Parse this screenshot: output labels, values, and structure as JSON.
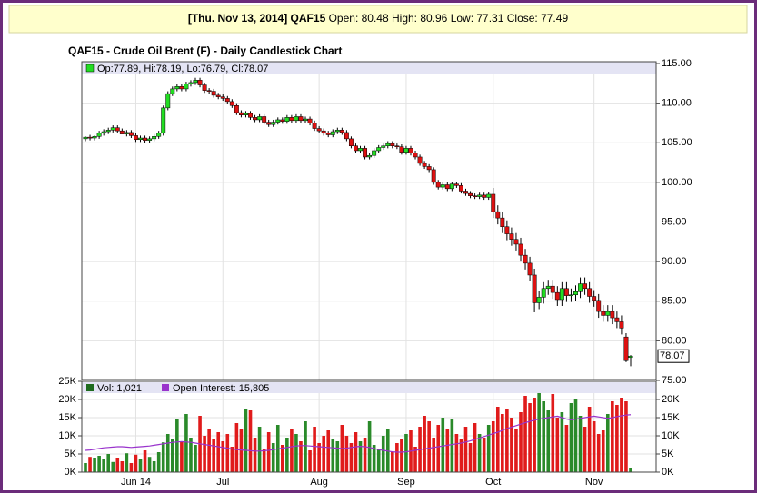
{
  "header": {
    "date_symbol": "[Thu. Nov 13, 2014] QAF15",
    "quote": "Open: 80.48 High: 80.96 Low: 77.31 Close: 77.49"
  },
  "chart_data": [
    {
      "type": "candlestick",
      "title": "QAF15 - Crude Oil Brent (F) - Daily Candlestick Chart",
      "legend": "Op:77.89, Hi:78.19, Lo:76.79, Cl:78.07",
      "last_label": "78.07",
      "last_value": 78.07,
      "up_color": "#22dd22",
      "down_color": "#dd1111",
      "ylim": [
        75,
        115
      ],
      "yticks": [
        {
          "value": 75,
          "label": "75.00"
        },
        {
          "value": 80,
          "label": "80.00"
        },
        {
          "value": 85,
          "label": "85.00"
        },
        {
          "value": 90,
          "label": "90.00"
        },
        {
          "value": 95,
          "label": "95.00"
        },
        {
          "value": 100,
          "label": "100.00"
        },
        {
          "value": 105,
          "label": "105.00"
        },
        {
          "value": 110,
          "label": "110.00"
        },
        {
          "value": 115,
          "label": "115.00"
        }
      ],
      "grid": true,
      "open": [
        105.5,
        105.7,
        105.6,
        105.8,
        106.2,
        106.4,
        106.6,
        106.9,
        106.5,
        106.1,
        106.3,
        105.9,
        105.4,
        105.6,
        105.3,
        105.5,
        105.8,
        106.2,
        109.4,
        111.2,
        111.8,
        112.1,
        111.8,
        112.4,
        112.6,
        112.9,
        112.3,
        111.6,
        111.5,
        111.0,
        110.8,
        110.6,
        110.2,
        109.7,
        108.8,
        108.5,
        108.7,
        108.2,
        107.9,
        108.3,
        107.6,
        107.3,
        107.6,
        107.9,
        107.7,
        108.2,
        107.8,
        108.3,
        107.8,
        108.0,
        107.5,
        106.8,
        106.5,
        106.2,
        106.0,
        106.4,
        106.6,
        106.3,
        105.5,
        104.6,
        104.0,
        104.3,
        103.2,
        103.4,
        104.0,
        104.4,
        104.6,
        104.9,
        104.6,
        104.5,
        103.8,
        104.3,
        103.7,
        103.2,
        102.4,
        102.0,
        101.6,
        100.0,
        99.4,
        99.7,
        99.2,
        99.8,
        99.6,
        98.9,
        98.6,
        98.3,
        98.2,
        98.4,
        98.1,
        98.5,
        96.3,
        95.5,
        94.4,
        93.5,
        92.8,
        92.2,
        90.8,
        89.8,
        88.3,
        84.8,
        85.5,
        86.6,
        86.9,
        86.1,
        85.2,
        86.6,
        85.7,
        85.8,
        86.2,
        87.2,
        86.6,
        85.6,
        85.1,
        83.7,
        83.2,
        83.7,
        82.9,
        82.4,
        80.48,
        77.89
      ],
      "high": [
        105.8,
        106.0,
        105.9,
        106.5,
        106.7,
        106.9,
        107.2,
        107.2,
        106.8,
        106.6,
        106.6,
        106.2,
        105.9,
        105.9,
        105.8,
        106.1,
        106.5,
        109.7,
        111.5,
        112.1,
        112.4,
        112.4,
        112.7,
        112.9,
        113.2,
        113.2,
        112.6,
        111.9,
        111.8,
        111.3,
        111.1,
        110.9,
        110.5,
        110.0,
        109.1,
        109.0,
        109.0,
        108.5,
        108.6,
        108.6,
        107.9,
        107.9,
        108.2,
        108.2,
        108.5,
        108.5,
        108.6,
        108.6,
        108.3,
        108.3,
        107.8,
        107.1,
        106.8,
        106.5,
        106.7,
        106.9,
        106.9,
        106.6,
        105.8,
        104.9,
        104.6,
        104.6,
        103.7,
        104.3,
        104.7,
        104.9,
        105.2,
        105.2,
        104.9,
        104.8,
        104.6,
        104.6,
        104.0,
        103.5,
        102.7,
        102.3,
        101.9,
        100.3,
        100.0,
        100.0,
        100.1,
        100.1,
        99.9,
        99.2,
        98.9,
        98.6,
        98.7,
        98.7,
        98.8,
        99.3,
        97.1,
        96.3,
        95.2,
        94.3,
        93.6,
        93.0,
        91.6,
        90.6,
        89.1,
        86.3,
        87.4,
        87.7,
        87.7,
        86.9,
        87.4,
        87.4,
        86.6,
        87.0,
        88.0,
        88.0,
        87.4,
        86.4,
        85.9,
        84.5,
        84.5,
        84.5,
        83.7,
        83.2,
        80.96,
        78.19
      ],
      "low": [
        105.2,
        105.3,
        105.3,
        105.5,
        105.9,
        106.1,
        106.3,
        106.2,
        106.2,
        105.8,
        105.6,
        105.1,
        105.1,
        105.0,
        105.0,
        105.2,
        105.5,
        105.9,
        109.1,
        110.9,
        111.5,
        111.5,
        111.5,
        112.1,
        112.3,
        112.0,
        111.3,
        111.2,
        110.7,
        110.5,
        110.3,
        109.9,
        109.4,
        108.5,
        108.2,
        108.2,
        107.9,
        107.6,
        107.6,
        107.3,
        107.0,
        107.0,
        107.3,
        107.4,
        107.4,
        107.5,
        107.5,
        107.5,
        107.5,
        107.2,
        106.5,
        106.2,
        105.9,
        105.7,
        105.7,
        106.1,
        106.0,
        105.2,
        104.3,
        103.7,
        103.7,
        102.9,
        102.9,
        103.1,
        103.7,
        104.1,
        104.3,
        104.3,
        104.2,
        103.5,
        103.5,
        103.4,
        102.9,
        102.1,
        101.7,
        101.3,
        99.7,
        99.1,
        99.1,
        98.9,
        98.9,
        99.3,
        98.6,
        98.3,
        98.0,
        97.9,
        97.9,
        97.8,
        97.8,
        95.5,
        94.7,
        93.6,
        92.7,
        92.0,
        91.4,
        90.0,
        89.0,
        87.5,
        83.6,
        84.0,
        84.7,
        85.8,
        85.3,
        84.4,
        84.4,
        84.9,
        84.9,
        85.0,
        85.4,
        85.8,
        84.8,
        84.3,
        82.9,
        82.4,
        82.4,
        82.1,
        81.6,
        80.8,
        77.31,
        76.79
      ],
      "close": [
        105.7,
        105.6,
        105.8,
        106.2,
        106.4,
        106.6,
        106.9,
        106.5,
        106.1,
        106.3,
        105.9,
        105.4,
        105.6,
        105.3,
        105.5,
        105.8,
        106.2,
        109.4,
        111.2,
        111.8,
        112.1,
        111.8,
        112.4,
        112.6,
        112.9,
        112.3,
        111.6,
        111.5,
        111.0,
        110.8,
        110.6,
        110.2,
        109.7,
        108.8,
        108.5,
        108.7,
        108.2,
        107.9,
        108.3,
        107.6,
        107.3,
        107.6,
        107.9,
        107.7,
        108.2,
        107.8,
        108.3,
        107.8,
        108.0,
        107.5,
        106.8,
        106.5,
        106.2,
        106.0,
        106.4,
        106.6,
        106.3,
        105.5,
        104.6,
        104.0,
        104.3,
        103.2,
        103.4,
        104.0,
        104.4,
        104.6,
        104.9,
        104.6,
        104.5,
        103.8,
        104.3,
        103.7,
        103.2,
        102.4,
        102.0,
        101.6,
        100.0,
        99.4,
        99.7,
        99.2,
        99.8,
        99.6,
        98.9,
        98.6,
        98.3,
        98.2,
        98.4,
        98.1,
        98.5,
        96.3,
        95.5,
        94.4,
        93.5,
        92.8,
        92.2,
        90.8,
        89.8,
        88.3,
        84.8,
        85.5,
        86.6,
        86.9,
        86.1,
        85.2,
        86.6,
        85.7,
        85.8,
        86.2,
        87.2,
        86.6,
        85.6,
        85.1,
        83.7,
        83.2,
        83.7,
        82.9,
        82.4,
        81.6,
        77.49,
        78.07
      ]
    },
    {
      "type": "bar",
      "categories": [
        null,
        null,
        null,
        null,
        null,
        null,
        null,
        null,
        null,
        null,
        null,
        "Jun 14",
        null,
        null,
        null,
        null,
        null,
        null,
        null,
        null,
        null,
        null,
        null,
        null,
        null,
        null,
        null,
        null,
        null,
        null,
        "Jul",
        null,
        null,
        null,
        null,
        null,
        null,
        null,
        null,
        null,
        null,
        null,
        null,
        null,
        null,
        null,
        null,
        null,
        null,
        null,
        null,
        "Aug",
        null,
        null,
        null,
        null,
        null,
        null,
        null,
        null,
        null,
        null,
        null,
        null,
        null,
        null,
        null,
        null,
        null,
        null,
        "Sep",
        null,
        null,
        null,
        null,
        null,
        null,
        null,
        null,
        null,
        null,
        null,
        null,
        null,
        null,
        null,
        null,
        null,
        null,
        "Oct",
        null,
        null,
        null,
        null,
        null,
        null,
        null,
        null,
        null,
        null,
        null,
        null,
        null,
        null,
        null,
        null,
        null,
        null,
        null,
        null,
        null,
        "Nov",
        null,
        null,
        null,
        null,
        null,
        null,
        null,
        null
      ],
      "ylim": [
        0,
        25000
      ],
      "yticks": [
        {
          "value": 0,
          "label": "0K"
        },
        {
          "value": 5000,
          "label": "5K"
        },
        {
          "value": 10000,
          "label": "10K"
        },
        {
          "value": 15000,
          "label": "15K"
        },
        {
          "value": 20000,
          "label": "20K"
        },
        {
          "value": 25000,
          "label": "25K"
        }
      ],
      "y2ticks": [
        {
          "value": 0,
          "label": "0K"
        },
        {
          "value": 5000,
          "label": "5K"
        },
        {
          "value": 10000,
          "label": "10K"
        },
        {
          "value": 15000,
          "label": "15K"
        },
        {
          "value": 20000,
          "label": "20K"
        }
      ],
      "grid": true,
      "series": [
        {
          "name": "Vol: 1,021",
          "color": "#1f6b1f",
          "up_color": "#2a8a2a",
          "down_color": "#e01b1b",
          "values": [
            2500,
            4200,
            3800,
            4500,
            3500,
            5000,
            2800,
            4000,
            3000,
            5200,
            2500,
            4800,
            3500,
            6000,
            4200,
            3000,
            5500,
            8200,
            10500,
            9000,
            14500,
            8500,
            16000,
            9500,
            7500,
            15500,
            10000,
            12000,
            9000,
            11000,
            8500,
            10500,
            7000,
            13500,
            12000,
            17500,
            17000,
            9500,
            12500,
            6500,
            11000,
            8000,
            13000,
            7500,
            9500,
            12000,
            10500,
            8500,
            14000,
            6000,
            12500,
            8000,
            10000,
            11500,
            9000,
            8500,
            13000,
            10000,
            8000,
            11000,
            8500,
            9500,
            14000,
            7500,
            6500,
            10000,
            12000,
            5500,
            8000,
            9000,
            10500,
            11500,
            7000,
            12500,
            15500,
            14000,
            9500,
            13000,
            15000,
            12000,
            14500,
            10500,
            9000,
            12500,
            8000,
            13500,
            10500,
            9500,
            13000,
            14000,
            18000,
            16000,
            17500,
            15000,
            12000,
            16500,
            21000,
            19000,
            20500,
            22500,
            19500,
            17000,
            21500,
            15000,
            16500,
            13000,
            19000,
            20000,
            15500,
            12500,
            18000,
            14000,
            10500,
            11500,
            16000,
            19500,
            18500,
            20500,
            19500,
            1021
          ]
        },
        {
          "name": "Open Interest: 15,805",
          "type": "line",
          "color": "#9933cc",
          "values": [
            6000,
            6100,
            6300,
            6500,
            6700,
            6800,
            6900,
            7000,
            7000,
            6900,
            6800,
            6900,
            7000,
            7100,
            7200,
            7400,
            7600,
            7800,
            8000,
            8200,
            8300,
            8400,
            8300,
            8200,
            8000,
            7800,
            7600,
            7400,
            7200,
            7000,
            6800,
            6600,
            6400,
            6200,
            6100,
            6000,
            5900,
            5800,
            5800,
            5900,
            6000,
            6200,
            6400,
            6600,
            6800,
            7000,
            7200,
            7300,
            7300,
            7200,
            7100,
            7000,
            6900,
            6800,
            6700,
            6600,
            6500,
            6600,
            6800,
            7000,
            7100,
            7000,
            6800,
            6500,
            6200,
            6000,
            5800,
            5600,
            5500,
            5500,
            5600,
            5800,
            6000,
            6200,
            6400,
            6600,
            6800,
            7000,
            7200,
            7400,
            7600,
            7800,
            8000,
            8300,
            8600,
            9000,
            9400,
            9800,
            10200,
            10600,
            11000,
            11500,
            12000,
            12400,
            12800,
            13200,
            13600,
            14000,
            14300,
            14600,
            14800,
            15000,
            15200,
            15400,
            15000,
            14600,
            14400,
            14600,
            14800,
            15000,
            15200,
            15400,
            15200,
            15000,
            14800,
            15000,
            15300,
            15500,
            15700,
            15805
          ]
        }
      ]
    }
  ]
}
